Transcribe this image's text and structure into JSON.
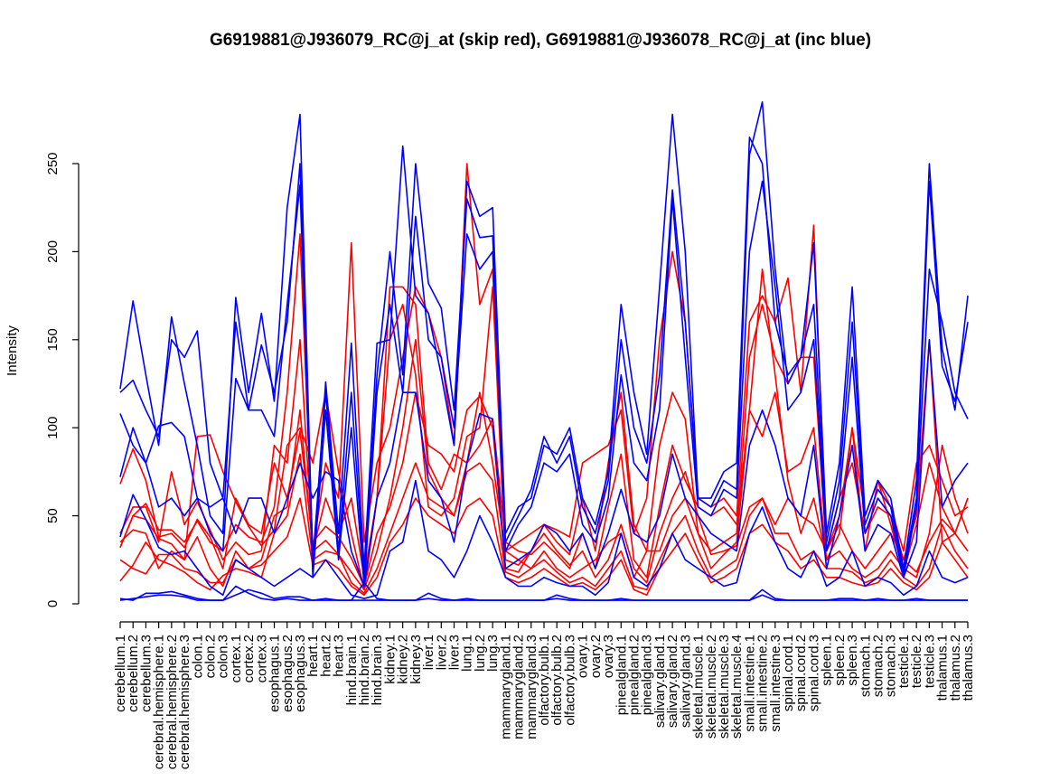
{
  "chart_data": {
    "type": "line",
    "title": "G6919881@J936079_RC@j_at (skip red), G6919881@J936078_RC@j_at (inc blue)",
    "xlabel": "",
    "ylabel": "Intensity",
    "ylim": [
      0,
      290
    ],
    "yticks": [
      0,
      50,
      100,
      150,
      200,
      250
    ],
    "grid": false,
    "legend": "none",
    "colors": {
      "skip": "#ff0000",
      "inc": "#0000ff"
    },
    "categories": [
      "cerebellum.1",
      "cerebellum.2",
      "cerebellum.3",
      "cerebral.hemisphere.1",
      "cerebral.hemisphere.2",
      "cerebral.hemisphere.3",
      "colon.1",
      "colon.2",
      "colon.3",
      "cortex.1",
      "cortex.2",
      "cortex.3",
      "esophagus.1",
      "esophagus.2",
      "esophagus.3",
      "heart.1",
      "heart.2",
      "heart.3",
      "hind.brain.1",
      "hind.brain.2",
      "hind.brain.3",
      "kidney.1",
      "kidney.2",
      "kidney.3",
      "liver.1",
      "liver.2",
      "liver.3",
      "lung.1",
      "lung.2",
      "lung.3",
      "mammarygland.1",
      "mammarygland.2",
      "mammarygland.3",
      "olfactory.bulb.1",
      "olfactory.bulb.2",
      "olfactory.bulb.3",
      "ovary.1",
      "ovary.2",
      "ovary.3",
      "pinealgland.1",
      "pinealgland.2",
      "pinealgland.3",
      "salivary.gland.1",
      "salivary.gland.2",
      "salivary.gland.3",
      "skeletal.muscle.1",
      "skeletal.muscle.2",
      "skeletal.muscle.3",
      "skeletal.muscle.4",
      "small.intestine.1",
      "small.intestine.2",
      "small.intestine.3",
      "spinal.cord.1",
      "spinal.cord.2",
      "spinal.cord.3",
      "spleen.1",
      "spleen.2",
      "spleen.3",
      "stomach.1",
      "stomach.2",
      "stomach.3",
      "testicle.1",
      "testicle.2",
      "testicle.3",
      "thalamus.1",
      "thalamus.2",
      "thalamus.3"
    ],
    "series": [
      {
        "group": "skip",
        "values": [
          68,
          88,
          70,
          38,
          40,
          32,
          48,
          38,
          20,
          60,
          45,
          40,
          80,
          60,
          98,
          35,
          44,
          38,
          26,
          10,
          40,
          55,
          80,
          120,
          90,
          85,
          75,
          110,
          118,
          100,
          20,
          18,
          30,
          40,
          30,
          22,
          30,
          15,
          25,
          45,
          20,
          12,
          40,
          60,
          75,
          50,
          28,
          30,
          33,
          55,
          60,
          45,
          60,
          50,
          45,
          30,
          45,
          30,
          20,
          30,
          40,
          25,
          18,
          35,
          48,
          40,
          30
        ]
      },
      {
        "group": "skip",
        "values": [
          32,
          50,
          48,
          37,
          34,
          25,
          38,
          20,
          10,
          30,
          20,
          25,
          50,
          55,
          110,
          30,
          36,
          28,
          18,
          8,
          30,
          60,
          100,
          150,
          75,
          60,
          50,
          80,
          120,
          80,
          30,
          25,
          20,
          30,
          20,
          15,
          20,
          25,
          35,
          40,
          15,
          30,
          30,
          50,
          60,
          40,
          20,
          28,
          35,
          110,
          190,
          130,
          70,
          40,
          60,
          25,
          30,
          20,
          15,
          20,
          30,
          20,
          15,
          40,
          90,
          60,
          40
        ]
      },
      {
        "group": "skip",
        "values": [
          13,
          22,
          35,
          25,
          22,
          18,
          12,
          8,
          16,
          20,
          18,
          15,
          40,
          50,
          85,
          25,
          30,
          28,
          12,
          6,
          20,
          40,
          60,
          80,
          60,
          55,
          50,
          75,
          80,
          70,
          18,
          15,
          20,
          25,
          18,
          12,
          15,
          10,
          20,
          30,
          10,
          8,
          25,
          40,
          50,
          30,
          15,
          20,
          25,
          50,
          60,
          40,
          40,
          25,
          30,
          20,
          20,
          18,
          12,
          15,
          25,
          15,
          10,
          20,
          45,
          30,
          20
        ]
      },
      {
        "group": "skip",
        "values": [
          25,
          20,
          17,
          28,
          28,
          20,
          18,
          12,
          12,
          25,
          20,
          22,
          30,
          38,
          60,
          22,
          25,
          20,
          10,
          5,
          15,
          35,
          45,
          60,
          50,
          45,
          40,
          55,
          60,
          50,
          15,
          12,
          15,
          20,
          15,
          10,
          12,
          8,
          15,
          25,
          8,
          5,
          20,
          30,
          40,
          25,
          12,
          15,
          20,
          40,
          45,
          35,
          30,
          20,
          25,
          15,
          15,
          12,
          10,
          12,
          20,
          12,
          8,
          15,
          35,
          25,
          15
        ]
      },
      {
        "group": "skip",
        "values": [
          40,
          55,
          55,
          35,
          75,
          45,
          58,
          42,
          25,
          35,
          28,
          30,
          90,
          80,
          150,
          30,
          60,
          40,
          60,
          15,
          60,
          150,
          170,
          130,
          55,
          50,
          60,
          95,
          100,
          180,
          25,
          22,
          30,
          45,
          35,
          28,
          60,
          30,
          80,
          120,
          45,
          30,
          90,
          120,
          105,
          40,
          30,
          35,
          40,
          140,
          170,
          140,
          125,
          140,
          140,
          30,
          50,
          100,
          30,
          70,
          55,
          30,
          80,
          90,
          70,
          50,
          55
        ]
      },
      {
        "group": "skip",
        "values": [
          32,
          50,
          57,
          42,
          42,
          35,
          47,
          35,
          30,
          45,
          38,
          35,
          55,
          120,
          210,
          30,
          80,
          60,
          205,
          35,
          80,
          100,
          140,
          180,
          165,
          140,
          90,
          250,
          170,
          190,
          30,
          35,
          40,
          45,
          42,
          38,
          80,
          85,
          90,
          110,
          40,
          60,
          150,
          200,
          160,
          60,
          55,
          60,
          50,
          160,
          175,
          160,
          185,
          120,
          215,
          30,
          60,
          80,
          40,
          55,
          50,
          25,
          50,
          150,
          35,
          40,
          60
        ]
      },
      {
        "group": "skip",
        "values": [
          35,
          42,
          40,
          20,
          30,
          25,
          95,
          96,
          75,
          58,
          44,
          33,
          42,
          90,
          100,
          80,
          120,
          75,
          40,
          8,
          60,
          180,
          180,
          170,
          80,
          65,
          85,
          80,
          90,
          105,
          35,
          30,
          28,
          35,
          28,
          20,
          40,
          20,
          55,
          85,
          25,
          15,
          55,
          90,
          70,
          55,
          50,
          55,
          45,
          110,
          95,
          120,
          75,
          80,
          100,
          25,
          40,
          100,
          50,
          70,
          45,
          18,
          45,
          80,
          55,
          40,
          60
        ]
      }
    ],
    "series_inc": [
      {
        "group": "inc",
        "values": [
          122,
          172,
          130,
          90,
          163,
          125,
          90,
          50,
          40,
          174,
          120,
          165,
          115,
          225,
          278,
          20,
          126,
          40,
          148,
          20,
          148,
          150,
          260,
          175,
          165,
          130,
          90,
          240,
          220,
          225,
          40,
          55,
          60,
          90,
          85,
          100,
          60,
          45,
          75,
          170,
          120,
          85,
          180,
          278,
          200,
          60,
          60,
          75,
          80,
          265,
          250,
          160,
          130,
          140,
          205,
          40,
          80,
          180,
          50,
          70,
          60,
          20,
          70,
          250,
          145,
          110,
          175
        ]
      },
      {
        "group": "inc",
        "values": [
          120,
          127,
          110,
          95,
          150,
          140,
          155,
          80,
          60,
          160,
          110,
          147,
          120,
          160,
          250,
          25,
          120,
          30,
          120,
          15,
          130,
          200,
          130,
          250,
          182,
          168,
          110,
          230,
          208,
          209,
          35,
          50,
          65,
          95,
          80,
          95,
          55,
          40,
          70,
          150,
          100,
          80,
          130,
          235,
          160,
          60,
          55,
          70,
          65,
          255,
          285,
          190,
          125,
          140,
          170,
          35,
          70,
          160,
          45,
          65,
          55,
          18,
          60,
          240,
          135,
          115,
          160
        ]
      },
      {
        "group": "inc",
        "values": [
          108,
          90,
          80,
          101,
          103,
          95,
          60,
          40,
          30,
          128,
          110,
          110,
          95,
          170,
          238,
          15,
          110,
          25,
          100,
          10,
          120,
          170,
          120,
          220,
          150,
          140,
          100,
          210,
          190,
          200,
          30,
          45,
          55,
          80,
          75,
          85,
          45,
          35,
          60,
          130,
          80,
          70,
          110,
          230,
          140,
          55,
          50,
          65,
          60,
          200,
          240,
          180,
          110,
          120,
          150,
          30,
          60,
          140,
          40,
          60,
          50,
          15,
          55,
          190,
          160,
          120,
          105
        ]
      },
      {
        "group": "inc",
        "values": [
          72,
          100,
          80,
          55,
          60,
          50,
          60,
          55,
          60,
          40,
          60,
          60,
          40,
          60,
          80,
          60,
          75,
          70,
          30,
          10,
          60,
          80,
          120,
          120,
          70,
          60,
          35,
          80,
          108,
          105,
          20,
          25,
          30,
          45,
          40,
          30,
          40,
          20,
          40,
          65,
          40,
          35,
          50,
          85,
          60,
          50,
          40,
          35,
          30,
          90,
          110,
          90,
          60,
          50,
          90,
          20,
          50,
          90,
          30,
          45,
          40,
          15,
          35,
          150,
          55,
          70,
          80
        ]
      },
      {
        "group": "inc",
        "values": [
          38,
          62,
          48,
          32,
          28,
          30,
          20,
          10,
          5,
          25,
          20,
          15,
          10,
          15,
          20,
          15,
          25,
          15,
          5,
          3,
          5,
          30,
          35,
          70,
          30,
          25,
          15,
          30,
          50,
          35,
          15,
          10,
          10,
          15,
          12,
          10,
          10,
          5,
          12,
          40,
          15,
          10,
          20,
          40,
          25,
          20,
          15,
          10,
          12,
          40,
          55,
          35,
          20,
          15,
          30,
          10,
          15,
          30,
          10,
          15,
          12,
          5,
          10,
          30,
          15,
          12,
          15
        ]
      },
      {
        "group": "inc",
        "values": [
          3,
          2,
          6,
          6,
          7,
          5,
          3,
          2,
          2,
          5,
          8,
          6,
          3,
          4,
          4,
          2,
          3,
          2,
          2,
          12,
          3,
          2,
          2,
          2,
          6,
          3,
          2,
          3,
          2,
          2,
          2,
          2,
          2,
          2,
          5,
          3,
          2,
          2,
          2,
          3,
          2,
          2,
          2,
          2,
          2,
          2,
          2,
          2,
          2,
          2,
          5,
          2,
          2,
          2,
          2,
          2,
          3,
          3,
          2,
          3,
          2,
          2,
          3,
          2,
          2,
          2,
          2
        ]
      },
      {
        "group": "inc",
        "values": [
          2,
          3,
          4,
          5,
          5,
          4,
          2,
          2,
          2,
          10,
          6,
          3,
          2,
          3,
          2,
          2,
          2,
          2,
          2,
          2,
          2,
          2,
          2,
          2,
          3,
          2,
          2,
          2,
          2,
          2,
          2,
          2,
          2,
          2,
          3,
          2,
          2,
          2,
          2,
          2,
          2,
          2,
          2,
          2,
          2,
          2,
          2,
          2,
          2,
          2,
          8,
          3,
          2,
          2,
          2,
          2,
          2,
          2,
          2,
          2,
          2,
          2,
          2,
          2,
          2,
          2,
          2
        ]
      }
    ]
  }
}
